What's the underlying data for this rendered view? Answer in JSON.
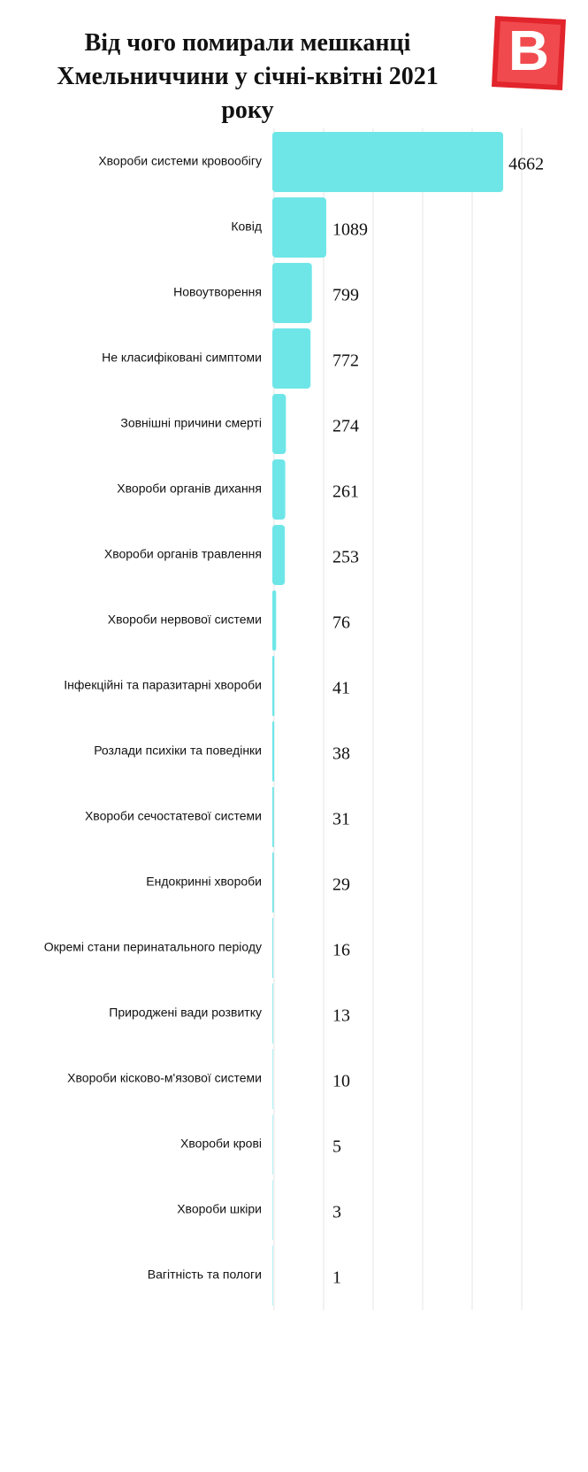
{
  "chart_data": {
    "type": "barh",
    "title": "Від чого помирали  мешканці Хмельниччини у січні-квітні 2021 року",
    "logo": "B",
    "categories": [
      "Хвороби системи кровообігу",
      "Ковід",
      "Новоутворення",
      "Не класифіковані симптоми",
      "Зовнішні причини смерті",
      "Хвороби органів дихання",
      "Хвороби органів травлення",
      "Хвороби нервової системи",
      "Інфекційні та паразитарні хвороби",
      "Розлади психіки та поведінки",
      "Хвороби сечостатевої системи",
      "Ендокринні хвороби",
      "Окремі стани перинатального періоду",
      "Природжені вади розвитку",
      "Хвороби кісково-м'язової системи",
      "Хвороби крові",
      "Хвороби шкіри",
      "Вагітність та пологи"
    ],
    "values": [
      4662,
      1089,
      799,
      772,
      274,
      261,
      253,
      76,
      41,
      38,
      31,
      29,
      16,
      13,
      10,
      5,
      3,
      1
    ],
    "color": "#6ee6e8",
    "xlim": [
      0,
      5000
    ],
    "xticks": [
      0,
      1000,
      2000,
      3000,
      4000,
      5000
    ],
    "grid": true
  }
}
